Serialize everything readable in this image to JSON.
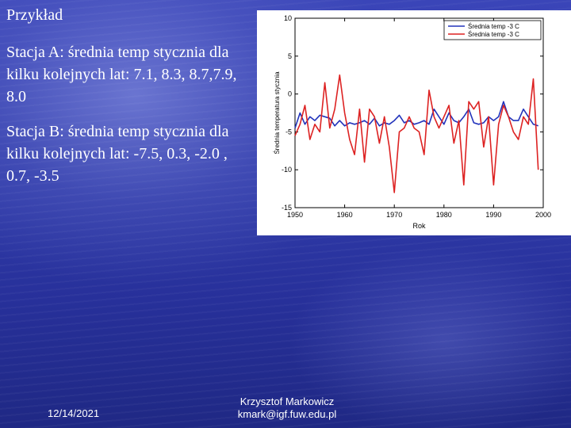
{
  "slide": {
    "title": "Przykład",
    "paragraph_a": "Stacja A: średnia temp stycznia dla kilku kolejnych lat: 7.1, 8.3, 8.7,7.9, 8.0",
    "paragraph_b": "Stacja B: średnia temp stycznia dla kilku kolejnych lat: -7.5, 0.3, -2.0 , 0.7, -3.5",
    "footer_date": "12/14/2021",
    "footer_author_line1": "Krzysztof Markowicz",
    "footer_author_line2": "kmark@igf.fuw.edu.pl"
  },
  "chart_data": {
    "type": "line",
    "xlabel": "Rok",
    "ylabel": "Średnia temperatura stycznia",
    "xlim": [
      1950,
      2000
    ],
    "ylim": [
      -15,
      10
    ],
    "xticks": [
      1950,
      1960,
      1970,
      1980,
      1990,
      2000
    ],
    "yticks": [
      10,
      5,
      0,
      -5,
      -10,
      -15
    ],
    "grid": false,
    "legend_position": "top-right",
    "x": [
      1950,
      1951,
      1952,
      1953,
      1954,
      1955,
      1956,
      1957,
      1958,
      1959,
      1960,
      1961,
      1962,
      1963,
      1964,
      1965,
      1966,
      1967,
      1968,
      1969,
      1970,
      1971,
      1972,
      1973,
      1974,
      1975,
      1976,
      1977,
      1978,
      1979,
      1980,
      1981,
      1982,
      1983,
      1984,
      1985,
      1986,
      1987,
      1988,
      1989,
      1990,
      1991,
      1992,
      1993,
      1994,
      1995,
      1996,
      1997,
      1998,
      1999
    ],
    "series": [
      {
        "name": "Średnia temp -3 C",
        "color": "#2233bb",
        "values": [
          -4.5,
          -2.5,
          -4.0,
          -3.0,
          -3.5,
          -2.8,
          -3.0,
          -3.2,
          -4.2,
          -3.5,
          -4.2,
          -3.8,
          -4.0,
          -3.8,
          -3.5,
          -4.0,
          -3.2,
          -4.2,
          -3.8,
          -4.0,
          -3.5,
          -2.8,
          -3.8,
          -3.5,
          -4.0,
          -3.8,
          -3.5,
          -4.0,
          -2.0,
          -3.0,
          -4.0,
          -2.5,
          -3.5,
          -3.8,
          -3.0,
          -2.0,
          -3.8,
          -4.0,
          -3.8,
          -3.0,
          -3.5,
          -3.0,
          -1.0,
          -3.0,
          -3.5,
          -3.5,
          -2.0,
          -3.0,
          -4.0,
          -4.2
        ]
      },
      {
        "name": "Średnia temp -3 C",
        "color": "#dd2222",
        "values": [
          -5.5,
          -4.0,
          -1.5,
          -6.0,
          -4.0,
          -5.0,
          1.5,
          -4.5,
          -2.0,
          2.5,
          -2.5,
          -6.0,
          -8.0,
          -2.0,
          -9.0,
          -2.0,
          -3.0,
          -6.5,
          -3.0,
          -7.0,
          -13.0,
          -5.0,
          -4.5,
          -3.0,
          -4.5,
          -5.0,
          -8.0,
          0.5,
          -3.0,
          -4.5,
          -3.0,
          -1.5,
          -6.5,
          -3.5,
          -12.0,
          -1.0,
          -2.0,
          -1.0,
          -7.0,
          -3.0,
          -12.0,
          -4.0,
          -1.5,
          -3.0,
          -5.0,
          -6.0,
          -3.0,
          -4.0,
          2.0,
          -10.0
        ]
      }
    ]
  }
}
